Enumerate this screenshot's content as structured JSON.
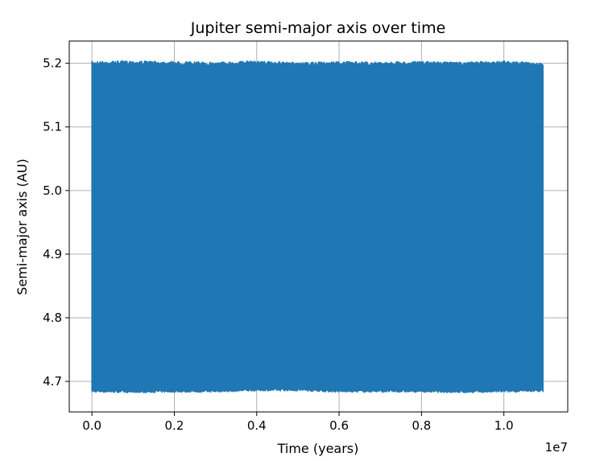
{
  "chart_data": {
    "type": "line",
    "title": "Jupiter semi-major axis over time",
    "xlabel": "Time (years)",
    "ylabel": "Semi-major axis (AU)",
    "x_offset_label": "1e7",
    "xlim": [
      -0.055,
      1.155
    ],
    "ylim": [
      4.652,
      5.235
    ],
    "x_ticks": [
      0.0,
      0.2,
      0.4,
      0.6,
      0.8,
      1.0
    ],
    "x_tick_labels": [
      "0.0",
      "0.2",
      "0.4",
      "0.6",
      "0.8",
      "1.0"
    ],
    "y_ticks": [
      4.7,
      4.8,
      4.9,
      5.0,
      5.1,
      5.2
    ],
    "y_tick_labels": [
      "4.7",
      "4.8",
      "4.9",
      "5.0",
      "5.1",
      "5.2"
    ],
    "grid": true,
    "series": [
      {
        "color": "#1f77b4",
        "x_range": [
          0.0,
          1.095
        ],
        "y_min": 4.683,
        "y_max": 5.203,
        "description_values": {
          "x": [
            0.0,
            0.1,
            0.2,
            0.3,
            0.4,
            0.5,
            0.6,
            0.7,
            0.8,
            0.9,
            1.0,
            1.095
          ],
          "y_upper": [
            5.203,
            5.204,
            5.203,
            5.202,
            5.204,
            5.201,
            5.203,
            5.202,
            5.203,
            5.202,
            5.204,
            5.2
          ],
          "y_lower": [
            4.683,
            4.682,
            4.683,
            4.683,
            4.685,
            4.685,
            4.683,
            4.683,
            4.683,
            4.682,
            4.683,
            4.684
          ]
        }
      }
    ]
  }
}
